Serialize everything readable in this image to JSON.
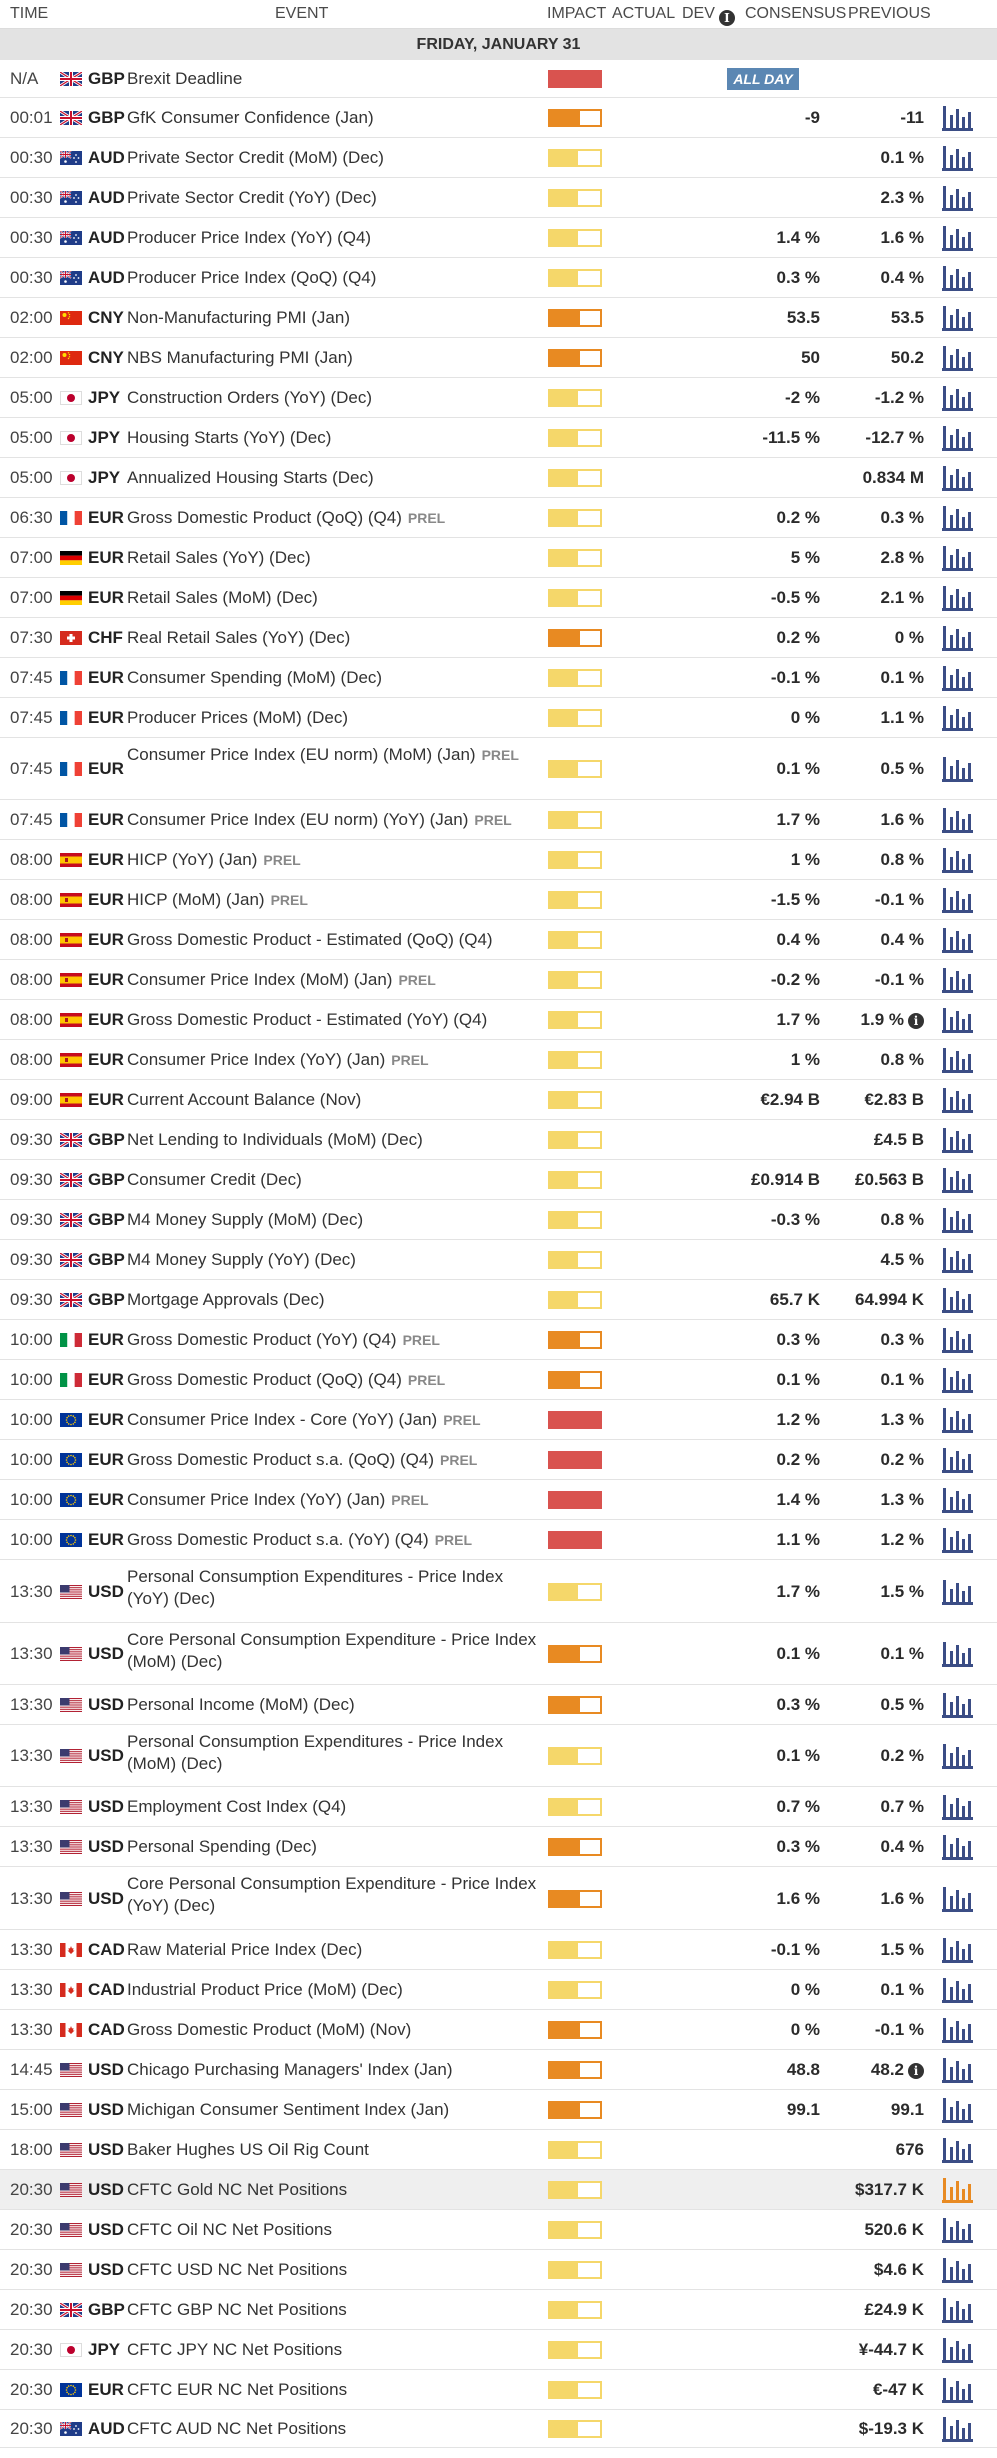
{
  "header": {
    "time": "TIME",
    "event": "EVENT",
    "impact": "IMPACT",
    "actual": "ACTUAL",
    "dev": "DEV",
    "consensus": "CONSENSUS",
    "previous": "PREVIOUS"
  },
  "day_label": "FRIDAY, JANUARY 31",
  "colors": {
    "low": "#f5d76a",
    "medium": "#e88a22",
    "high": "#d9534f",
    "allday_bg": "#5b87b3",
    "chart_icon": "#3b4d85",
    "chart_icon_active": "#e88a22",
    "highlight_row": "#efefef"
  },
  "events": [
    {
      "time": "N/A",
      "flag": "gb",
      "cur": "GBP",
      "event": "Brexit Deadline",
      "prel": "",
      "impact": "high",
      "cons": "",
      "prev": "",
      "allday": "ALL DAY",
      "h": 38,
      "chart": false
    },
    {
      "time": "00:01",
      "flag": "gb",
      "cur": "GBP",
      "event": "GfK Consumer Confidence (Jan)",
      "prel": "",
      "impact": "medium",
      "cons": "-9",
      "prev": "-11",
      "h": 40,
      "chart": true
    },
    {
      "time": "00:30",
      "flag": "au",
      "cur": "AUD",
      "event": "Private Sector Credit (MoM) (Dec)",
      "prel": "",
      "impact": "low",
      "cons": "",
      "prev": "0.1 %",
      "h": 40,
      "chart": true
    },
    {
      "time": "00:30",
      "flag": "au",
      "cur": "AUD",
      "event": "Private Sector Credit (YoY) (Dec)",
      "prel": "",
      "impact": "low",
      "cons": "",
      "prev": "2.3 %",
      "h": 40,
      "chart": true
    },
    {
      "time": "00:30",
      "flag": "au",
      "cur": "AUD",
      "event": "Producer Price Index (YoY) (Q4)",
      "prel": "",
      "impact": "low",
      "cons": "1.4 %",
      "prev": "1.6 %",
      "h": 40,
      "chart": true
    },
    {
      "time": "00:30",
      "flag": "au",
      "cur": "AUD",
      "event": "Producer Price Index (QoQ) (Q4)",
      "prel": "",
      "impact": "low",
      "cons": "0.3 %",
      "prev": "0.4 %",
      "h": 40,
      "chart": true
    },
    {
      "time": "02:00",
      "flag": "cn",
      "cur": "CNY",
      "event": "Non-Manufacturing PMI (Jan)",
      "prel": "",
      "impact": "medium_full",
      "cons": "53.5",
      "prev": "53.5",
      "h": 40,
      "chart": true
    },
    {
      "time": "02:00",
      "flag": "cn",
      "cur": "CNY",
      "event": "NBS Manufacturing PMI (Jan)",
      "prel": "",
      "impact": "medium_full",
      "cons": "50",
      "prev": "50.2",
      "h": 40,
      "chart": true
    },
    {
      "time": "05:00",
      "flag": "jp",
      "cur": "JPY",
      "event": "Construction Orders (YoY) (Dec)",
      "prel": "",
      "impact": "low",
      "cons": "-2 %",
      "prev": "-1.2 %",
      "h": 40,
      "chart": true
    },
    {
      "time": "05:00",
      "flag": "jp",
      "cur": "JPY",
      "event": "Housing Starts (YoY) (Dec)",
      "prel": "",
      "impact": "low",
      "cons": "-11.5 %",
      "prev": "-12.7 %",
      "h": 40,
      "chart": true
    },
    {
      "time": "05:00",
      "flag": "jp",
      "cur": "JPY",
      "event": "Annualized Housing Starts (Dec)",
      "prel": "",
      "impact": "low",
      "cons": "",
      "prev": "0.834 M",
      "h": 40,
      "chart": true
    },
    {
      "time": "06:30",
      "flag": "fr",
      "cur": "EUR",
      "event": "Gross Domestic Product (QoQ) (Q4)",
      "prel": "PREL",
      "impact": "low",
      "cons": "0.2 %",
      "prev": "0.3 %",
      "h": 40,
      "chart": true
    },
    {
      "time": "07:00",
      "flag": "de",
      "cur": "EUR",
      "event": "Retail Sales (YoY) (Dec)",
      "prel": "",
      "impact": "low",
      "cons": "5 %",
      "prev": "2.8 %",
      "h": 40,
      "chart": true
    },
    {
      "time": "07:00",
      "flag": "de",
      "cur": "EUR",
      "event": "Retail Sales (MoM) (Dec)",
      "prel": "",
      "impact": "low",
      "cons": "-0.5 %",
      "prev": "2.1 %",
      "h": 40,
      "chart": true
    },
    {
      "time": "07:30",
      "flag": "ch",
      "cur": "CHF",
      "event": "Real Retail Sales (YoY) (Dec)",
      "prel": "",
      "impact": "medium",
      "cons": "0.2 %",
      "prev": "0 %",
      "h": 40,
      "chart": true
    },
    {
      "time": "07:45",
      "flag": "fr",
      "cur": "EUR",
      "event": "Consumer Spending (MoM) (Dec)",
      "prel": "",
      "impact": "low",
      "cons": "-0.1 %",
      "prev": "0.1 %",
      "h": 40,
      "chart": true
    },
    {
      "time": "07:45",
      "flag": "fr",
      "cur": "EUR",
      "event": "Producer Prices (MoM) (Dec)",
      "prel": "",
      "impact": "low",
      "cons": "0 %",
      "prev": "1.1 %",
      "h": 40,
      "chart": true
    },
    {
      "time": "07:45",
      "flag": "fr",
      "cur": "EUR",
      "event": "Consumer Price Index (EU norm) (MoM) (Jan)",
      "prel": "PREL",
      "impact": "low",
      "cons": "0.1 %",
      "prev": "0.5 %",
      "h": 62,
      "chart": true,
      "ev_top": 6
    },
    {
      "time": "07:45",
      "flag": "fr",
      "cur": "EUR",
      "event": "Consumer Price Index (EU norm) (YoY) (Jan)",
      "prel": "PREL",
      "impact": "low",
      "cons": "1.7 %",
      "prev": "1.6 %",
      "h": 40,
      "chart": true
    },
    {
      "time": "08:00",
      "flag": "es",
      "cur": "EUR",
      "event": "HICP (YoY) (Jan)",
      "prel": "PREL",
      "impact": "low",
      "cons": "1 %",
      "prev": "0.8 %",
      "h": 40,
      "chart": true
    },
    {
      "time": "08:00",
      "flag": "es",
      "cur": "EUR",
      "event": "HICP (MoM) (Jan)",
      "prel": "PREL",
      "impact": "low",
      "cons": "-1.5 %",
      "prev": "-0.1 %",
      "h": 40,
      "chart": true
    },
    {
      "time": "08:00",
      "flag": "es",
      "cur": "EUR",
      "event": "Gross Domestic Product - Estimated (QoQ) (Q4)",
      "prel": "",
      "impact": "low",
      "cons": "0.4 %",
      "prev": "0.4 %",
      "h": 40,
      "chart": true
    },
    {
      "time": "08:00",
      "flag": "es",
      "cur": "EUR",
      "event": "Consumer Price Index (MoM) (Jan)",
      "prel": "PREL",
      "impact": "low",
      "cons": "-0.2 %",
      "prev": "-0.1 %",
      "h": 40,
      "chart": true
    },
    {
      "time": "08:00",
      "flag": "es",
      "cur": "EUR",
      "event": "Gross Domestic Product - Estimated (YoY) (Q4)",
      "prel": "",
      "impact": "low",
      "cons": "1.7 %",
      "prev": "1.9 %",
      "prev_info": true,
      "h": 40,
      "chart": true
    },
    {
      "time": "08:00",
      "flag": "es",
      "cur": "EUR",
      "event": "Consumer Price Index (YoY) (Jan)",
      "prel": "PREL",
      "impact": "low",
      "cons": "1 %",
      "prev": "0.8 %",
      "h": 40,
      "chart": true
    },
    {
      "time": "09:00",
      "flag": "es",
      "cur": "EUR",
      "event": "Current Account Balance (Nov)",
      "prel": "",
      "impact": "low",
      "cons": "€2.94 B",
      "prev": "€2.83 B",
      "h": 40,
      "chart": true
    },
    {
      "time": "09:30",
      "flag": "gb",
      "cur": "GBP",
      "event": "Net Lending to Individuals (MoM) (Dec)",
      "prel": "",
      "impact": "low",
      "cons": "",
      "prev": "£4.5 B",
      "h": 40,
      "chart": true
    },
    {
      "time": "09:30",
      "flag": "gb",
      "cur": "GBP",
      "event": "Consumer Credit (Dec)",
      "prel": "",
      "impact": "low",
      "cons": "£0.914 B",
      "prev": "£0.563 B",
      "h": 40,
      "chart": true
    },
    {
      "time": "09:30",
      "flag": "gb",
      "cur": "GBP",
      "event": "M4 Money Supply (MoM) (Dec)",
      "prel": "",
      "impact": "low",
      "cons": "-0.3 %",
      "prev": "0.8 %",
      "h": 40,
      "chart": true
    },
    {
      "time": "09:30",
      "flag": "gb",
      "cur": "GBP",
      "event": "M4 Money Supply (YoY) (Dec)",
      "prel": "",
      "impact": "low",
      "cons": "",
      "prev": "4.5 %",
      "h": 40,
      "chart": true
    },
    {
      "time": "09:30",
      "flag": "gb",
      "cur": "GBP",
      "event": "Mortgage Approvals (Dec)",
      "prel": "",
      "impact": "low",
      "cons": "65.7 K",
      "prev": "64.994 K",
      "h": 40,
      "chart": true
    },
    {
      "time": "10:00",
      "flag": "it",
      "cur": "EUR",
      "event": "Gross Domestic Product (YoY) (Q4)",
      "prel": "PREL",
      "impact": "medium",
      "cons": "0.3 %",
      "prev": "0.3 %",
      "h": 40,
      "chart": true
    },
    {
      "time": "10:00",
      "flag": "it",
      "cur": "EUR",
      "event": "Gross Domestic Product (QoQ) (Q4)",
      "prel": "PREL",
      "impact": "medium",
      "cons": "0.1 %",
      "prev": "0.1 %",
      "h": 40,
      "chart": true
    },
    {
      "time": "10:00",
      "flag": "eu",
      "cur": "EUR",
      "event": "Consumer Price Index - Core (YoY) (Jan)",
      "prel": "PREL",
      "impact": "high",
      "cons": "1.2 %",
      "prev": "1.3 %",
      "h": 40,
      "chart": true
    },
    {
      "time": "10:00",
      "flag": "eu",
      "cur": "EUR",
      "event": "Gross Domestic Product s.a. (QoQ) (Q4)",
      "prel": "PREL",
      "impact": "high",
      "cons": "0.2 %",
      "prev": "0.2 %",
      "h": 40,
      "chart": true
    },
    {
      "time": "10:00",
      "flag": "eu",
      "cur": "EUR",
      "event": "Consumer Price Index (YoY) (Jan)",
      "prel": "PREL",
      "impact": "high",
      "cons": "1.4 %",
      "prev": "1.3 %",
      "h": 40,
      "chart": true
    },
    {
      "time": "10:00",
      "flag": "eu",
      "cur": "EUR",
      "event": "Gross Domestic Product s.a. (YoY) (Q4)",
      "prel": "PREL",
      "impact": "high",
      "cons": "1.1 %",
      "prev": "1.2 %",
      "h": 40,
      "chart": true
    },
    {
      "time": "13:30",
      "flag": "us",
      "cur": "USD",
      "event": "Personal Consumption Expenditures - Price Index (YoY) (Dec)",
      "prel": "",
      "impact": "low",
      "cons": "1.7 %",
      "prev": "1.5 %",
      "h": 63,
      "chart": true,
      "ev_top": 6
    },
    {
      "time": "13:30",
      "flag": "us",
      "cur": "USD",
      "event": "Core Personal Consumption Expenditure - Price Index (MoM) (Dec)",
      "prel": "",
      "impact": "medium",
      "cons": "0.1 %",
      "prev": "0.1 %",
      "h": 62,
      "chart": true,
      "ev_top": 6
    },
    {
      "time": "13:30",
      "flag": "us",
      "cur": "USD",
      "event": "Personal Income (MoM) (Dec)",
      "prel": "",
      "impact": "medium",
      "cons": "0.3 %",
      "prev": "0.5 %",
      "h": 40,
      "chart": true
    },
    {
      "time": "13:30",
      "flag": "us",
      "cur": "USD",
      "event": "Personal Consumption Expenditures - Price Index (MoM) (Dec)",
      "prel": "",
      "impact": "low",
      "cons": "0.1 %",
      "prev": "0.2 %",
      "h": 62,
      "chart": true,
      "ev_top": 6
    },
    {
      "time": "13:30",
      "flag": "us",
      "cur": "USD",
      "event": "Employment Cost Index (Q4)",
      "prel": "",
      "impact": "low",
      "cons": "0.7 %",
      "prev": "0.7 %",
      "h": 40,
      "chart": true
    },
    {
      "time": "13:30",
      "flag": "us",
      "cur": "USD",
      "event": "Personal Spending (Dec)",
      "prel": "",
      "impact": "medium",
      "cons": "0.3 %",
      "prev": "0.4 %",
      "h": 40,
      "chart": true
    },
    {
      "time": "13:30",
      "flag": "us",
      "cur": "USD",
      "event": "Core Personal Consumption Expenditure - Price Index (YoY) (Dec)",
      "prel": "",
      "impact": "medium",
      "cons": "1.6 %",
      "prev": "1.6 %",
      "h": 63,
      "chart": true,
      "ev_top": 6
    },
    {
      "time": "13:30",
      "flag": "ca",
      "cur": "CAD",
      "event": "Raw Material Price Index (Dec)",
      "prel": "",
      "impact": "low",
      "cons": "-0.1 %",
      "prev": "1.5 %",
      "h": 40,
      "chart": true
    },
    {
      "time": "13:30",
      "flag": "ca",
      "cur": "CAD",
      "event": "Industrial Product Price (MoM) (Dec)",
      "prel": "",
      "impact": "low",
      "cons": "0 %",
      "prev": "0.1 %",
      "h": 40,
      "chart": true
    },
    {
      "time": "13:30",
      "flag": "ca",
      "cur": "CAD",
      "event": "Gross Domestic Product (MoM) (Nov)",
      "prel": "",
      "impact": "medium",
      "cons": "0 %",
      "prev": "-0.1 %",
      "h": 40,
      "chart": true
    },
    {
      "time": "14:45",
      "flag": "us",
      "cur": "USD",
      "event": "Chicago Purchasing Managers' Index (Jan)",
      "prel": "",
      "impact": "medium",
      "cons": "48.8",
      "prev": "48.2",
      "prev_info": true,
      "h": 40,
      "chart": true
    },
    {
      "time": "15:00",
      "flag": "us",
      "cur": "USD",
      "event": "Michigan Consumer Sentiment Index (Jan)",
      "prel": "",
      "impact": "medium",
      "cons": "99.1",
      "prev": "99.1",
      "h": 40,
      "chart": true
    },
    {
      "time": "18:00",
      "flag": "us",
      "cur": "USD",
      "event": "Baker Hughes US Oil Rig Count",
      "prel": "",
      "impact": "low",
      "cons": "",
      "prev": "676",
      "h": 40,
      "chart": true
    },
    {
      "time": "20:30",
      "flag": "us",
      "cur": "USD",
      "event": "CFTC Gold NC Net Positions",
      "prel": "",
      "impact": "low",
      "cons": "",
      "prev": "$317.7 K",
      "h": 40,
      "chart": true,
      "highlight": true
    },
    {
      "time": "20:30",
      "flag": "us",
      "cur": "USD",
      "event": "CFTC Oil NC Net Positions",
      "prel": "",
      "impact": "low",
      "cons": "",
      "prev": "520.6 K",
      "h": 40,
      "chart": true
    },
    {
      "time": "20:30",
      "flag": "us",
      "cur": "USD",
      "event": "CFTC USD NC Net Positions",
      "prel": "",
      "impact": "low",
      "cons": "",
      "prev": "$4.6 K",
      "h": 40,
      "chart": true
    },
    {
      "time": "20:30",
      "flag": "gb",
      "cur": "GBP",
      "event": "CFTC GBP NC Net Positions",
      "prel": "",
      "impact": "low",
      "cons": "",
      "prev": "£24.9 K",
      "h": 40,
      "chart": true
    },
    {
      "time": "20:30",
      "flag": "jp",
      "cur": "JPY",
      "event": "CFTC JPY NC Net Positions",
      "prel": "",
      "impact": "low",
      "cons": "",
      "prev": "¥-44.7 K",
      "h": 40,
      "chart": true
    },
    {
      "time": "20:30",
      "flag": "eu",
      "cur": "EUR",
      "event": "CFTC EUR NC Net Positions",
      "prel": "",
      "impact": "low",
      "cons": "",
      "prev": "€-47 K",
      "h": 40,
      "chart": true
    },
    {
      "time": "20:30",
      "flag": "au",
      "cur": "AUD",
      "event": "CFTC AUD NC Net Positions",
      "prel": "",
      "impact": "low",
      "cons": "",
      "prev": "$-19.3 K",
      "h": 38,
      "chart": true
    }
  ]
}
